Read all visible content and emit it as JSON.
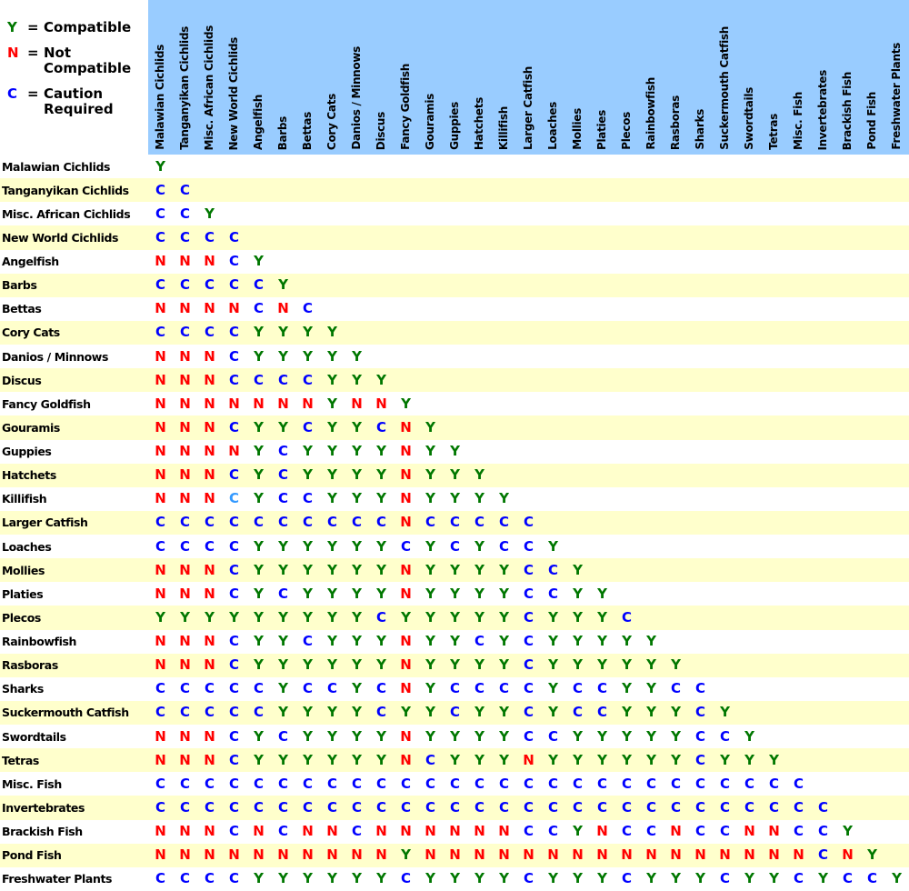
{
  "legend": {
    "equals": "=",
    "items": [
      {
        "symbol": "Y",
        "meaning_lines": [
          "Compatible"
        ]
      },
      {
        "symbol": "N",
        "meaning_lines": [
          "Not",
          "Compatible"
        ]
      },
      {
        "symbol": "C",
        "meaning_lines": [
          "Caution",
          "Required"
        ]
      }
    ]
  },
  "colors": {
    "header_bg": "#99CCFF",
    "row_even_bg": "#FFFFFF",
    "row_odd_bg": "#FFFFCC",
    "text": "#000000",
    "symbol_Y": "#007700",
    "symbol_N": "#FF0000",
    "symbol_C": "#0000FF",
    "symbol_C_light": "#3399FF"
  },
  "chart_data": {
    "type": "table",
    "value_key": {
      "Y": "Compatible",
      "N": "Not Compatible",
      "C": "Caution Required",
      "c": "Caution Required (printed in lighter blue in source)"
    },
    "species": [
      "Malawian Cichlids",
      "Tanganyikan Cichlids",
      "Misc. African Cichlids",
      "New World Cichlids",
      "Angelfish",
      "Barbs",
      "Bettas",
      "Cory Cats",
      "Danios / Minnows",
      "Discus",
      "Fancy Goldfish",
      "Gouramis",
      "Guppies",
      "Hatchets",
      "Killifish",
      "Larger Catfish",
      "Loaches",
      "Mollies",
      "Platies",
      "Plecos",
      "Rainbowfish",
      "Rasboras",
      "Sharks",
      "Suckermouth Catfish",
      "Swordtails",
      "Tetras",
      "Misc. Fish",
      "Invertebrates",
      "Brackish Fish",
      "Pond Fish",
      "Freshwater Plants"
    ],
    "values": [
      "Y",
      "CC",
      "CCY",
      "CCCC",
      "NNNCY",
      "CCCCCY",
      "NNNNCNC",
      "CCCCYYYY",
      "NNNCYYYYY",
      "NNNCCCCYYY",
      "NNNNNNNYNNY",
      "NNNCYYCYYCNY",
      "NNNNYCYYYYNYY",
      "NNNCYCYYYYNYYY",
      "NNNcYCCYYYNYYYY",
      "CCCCCCCCCCNCCCCC",
      "CCCCYYYYYYCYCYCCY",
      "NNNCYYYYYYNYYYYCCY",
      "NNNCYCYYYYNYYYYCCYY",
      "YYYYYYYYYCYYYYYCYYYC",
      "NNNCYYCYYYNYYCYCYYYYY",
      "NNNCYYYYYYNYYYYCYYYYYY",
      "CCCCCYCCYCNYCCCCYCCYYCC",
      "CCCCCYYYYCYYCYYCYCCYYYCY",
      "NNNCYCYYYYNYYYYCCYYYYYCCY",
      "NNNCYYYYYYNCYYYNYYYYYYCYYY",
      "CCCCCCCCCCCCCCCCCCCCCCCCCCC",
      "CCCCCCCCCCCCCCCCCCCCCCCCCCCC",
      "NNNCNCNNCNNNNNNCCYNCCNCCNNCCY",
      "NNNNNNNNNNYNNNNNNNNNNNNNNNNCNY",
      "CCCCYYYYYYCYYYYCYYYCYYYCYYCYCCY"
    ]
  }
}
